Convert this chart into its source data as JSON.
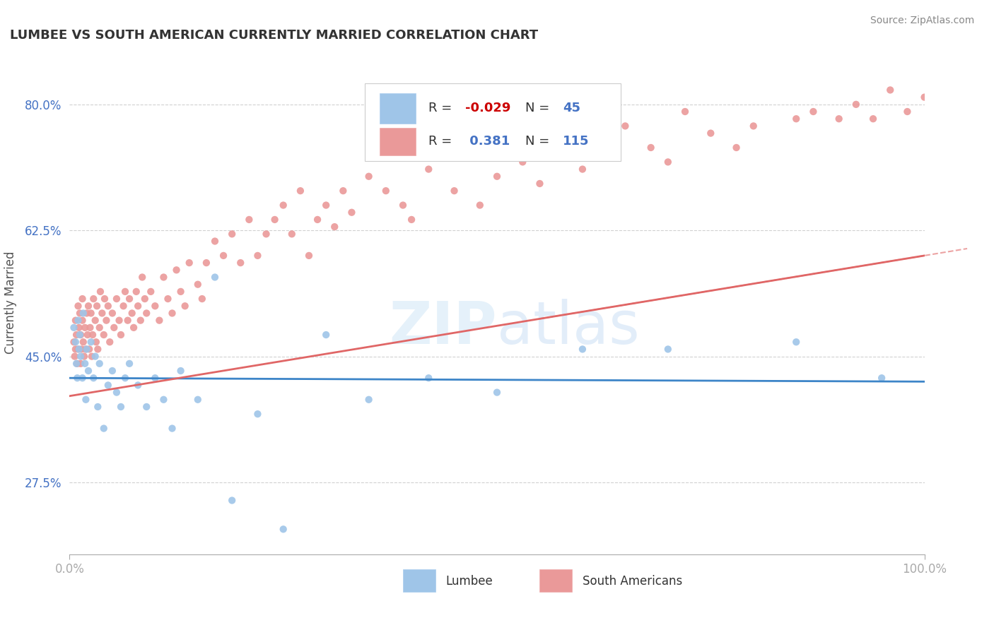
{
  "title": "LUMBEE VS SOUTH AMERICAN CURRENTLY MARRIED CORRELATION CHART",
  "source": "Source: ZipAtlas.com",
  "ylabel": "Currently Married",
  "xlim": [
    0.0,
    1.0
  ],
  "ylim": [
    0.175,
    0.875
  ],
  "yticks": [
    0.275,
    0.45,
    0.625,
    0.8
  ],
  "ytick_labels": [
    "27.5%",
    "45.0%",
    "62.5%",
    "80.0%"
  ],
  "xtick_labels": [
    "0.0%",
    "100.0%"
  ],
  "lumbee_color": "#9fc5e8",
  "sa_color": "#ea9999",
  "lumbee_line_color": "#3d85c8",
  "sa_line_color": "#e06666",
  "grid_color": "#cccccc",
  "bg_color": "#ffffff",
  "legend_R_lumbee": "-0.029",
  "legend_N_lumbee": "45",
  "legend_R_sa": "0.381",
  "legend_N_sa": "115",
  "lumbee_intercept": 0.42,
  "lumbee_slope": -0.005,
  "sa_intercept": 0.395,
  "sa_slope": 0.195,
  "lumbee_x": [
    0.005,
    0.007,
    0.008,
    0.009,
    0.01,
    0.011,
    0.012,
    0.013,
    0.015,
    0.016,
    0.018,
    0.019,
    0.02,
    0.022,
    0.025,
    0.028,
    0.03,
    0.033,
    0.035,
    0.04,
    0.045,
    0.05,
    0.055,
    0.06,
    0.065,
    0.07,
    0.08,
    0.09,
    0.1,
    0.11,
    0.12,
    0.13,
    0.15,
    0.17,
    0.19,
    0.22,
    0.25,
    0.3,
    0.35,
    0.42,
    0.5,
    0.6,
    0.7,
    0.85,
    0.95
  ],
  "lumbee_y": [
    0.49,
    0.47,
    0.44,
    0.42,
    0.5,
    0.46,
    0.48,
    0.45,
    0.42,
    0.51,
    0.44,
    0.39,
    0.46,
    0.43,
    0.47,
    0.42,
    0.45,
    0.38,
    0.44,
    0.35,
    0.41,
    0.43,
    0.4,
    0.38,
    0.42,
    0.44,
    0.41,
    0.38,
    0.42,
    0.39,
    0.35,
    0.43,
    0.39,
    0.56,
    0.25,
    0.37,
    0.21,
    0.48,
    0.39,
    0.42,
    0.4,
    0.46,
    0.46,
    0.47,
    0.42
  ],
  "sa_x": [
    0.005,
    0.006,
    0.007,
    0.007,
    0.008,
    0.009,
    0.01,
    0.01,
    0.011,
    0.012,
    0.013,
    0.013,
    0.014,
    0.015,
    0.015,
    0.016,
    0.017,
    0.018,
    0.019,
    0.02,
    0.021,
    0.022,
    0.023,
    0.024,
    0.025,
    0.026,
    0.027,
    0.028,
    0.03,
    0.031,
    0.032,
    0.033,
    0.035,
    0.036,
    0.038,
    0.04,
    0.041,
    0.043,
    0.045,
    0.047,
    0.05,
    0.052,
    0.055,
    0.058,
    0.06,
    0.063,
    0.065,
    0.068,
    0.07,
    0.073,
    0.075,
    0.078,
    0.08,
    0.083,
    0.085,
    0.088,
    0.09,
    0.095,
    0.1,
    0.105,
    0.11,
    0.115,
    0.12,
    0.125,
    0.13,
    0.135,
    0.14,
    0.15,
    0.155,
    0.16,
    0.17,
    0.18,
    0.19,
    0.2,
    0.21,
    0.22,
    0.23,
    0.24,
    0.25,
    0.26,
    0.27,
    0.28,
    0.29,
    0.3,
    0.31,
    0.32,
    0.33,
    0.35,
    0.37,
    0.39,
    0.4,
    0.42,
    0.45,
    0.48,
    0.5,
    0.53,
    0.55,
    0.58,
    0.6,
    0.63,
    0.65,
    0.68,
    0.7,
    0.72,
    0.75,
    0.78,
    0.8,
    0.85,
    0.87,
    0.9,
    0.92,
    0.94,
    0.96,
    0.98,
    1.0
  ],
  "sa_y": [
    0.47,
    0.45,
    0.46,
    0.5,
    0.48,
    0.44,
    0.52,
    0.46,
    0.49,
    0.51,
    0.44,
    0.48,
    0.46,
    0.5,
    0.53,
    0.47,
    0.45,
    0.49,
    0.46,
    0.51,
    0.48,
    0.52,
    0.46,
    0.49,
    0.51,
    0.45,
    0.48,
    0.53,
    0.5,
    0.47,
    0.52,
    0.46,
    0.49,
    0.54,
    0.51,
    0.48,
    0.53,
    0.5,
    0.52,
    0.47,
    0.51,
    0.49,
    0.53,
    0.5,
    0.48,
    0.52,
    0.54,
    0.5,
    0.53,
    0.51,
    0.49,
    0.54,
    0.52,
    0.5,
    0.56,
    0.53,
    0.51,
    0.54,
    0.52,
    0.5,
    0.56,
    0.53,
    0.51,
    0.57,
    0.54,
    0.52,
    0.58,
    0.55,
    0.53,
    0.58,
    0.61,
    0.59,
    0.62,
    0.58,
    0.64,
    0.59,
    0.62,
    0.64,
    0.66,
    0.62,
    0.68,
    0.59,
    0.64,
    0.66,
    0.63,
    0.68,
    0.65,
    0.7,
    0.68,
    0.66,
    0.64,
    0.71,
    0.68,
    0.66,
    0.7,
    0.72,
    0.69,
    0.75,
    0.71,
    0.73,
    0.77,
    0.74,
    0.72,
    0.79,
    0.76,
    0.74,
    0.77,
    0.78,
    0.79,
    0.78,
    0.8,
    0.78,
    0.82,
    0.79,
    0.81
  ]
}
